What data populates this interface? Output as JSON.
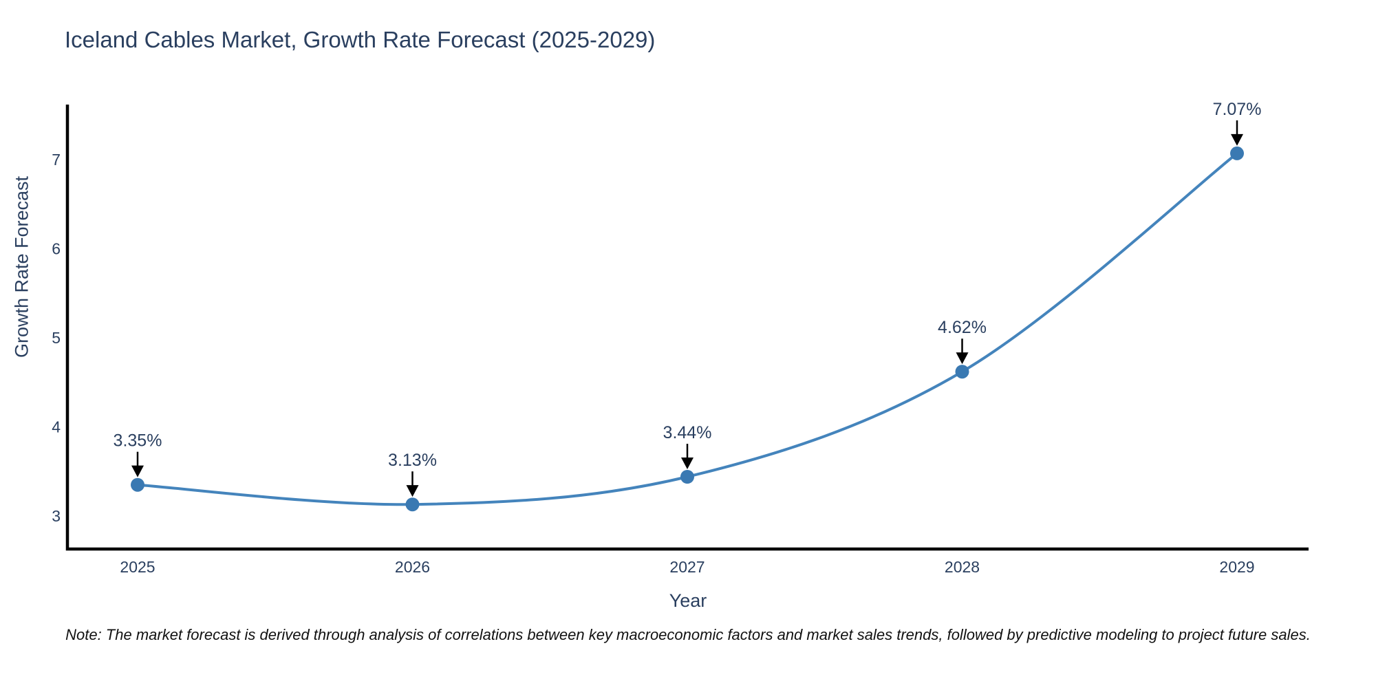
{
  "note": "Note: The market forecast is derived through analysis of correlations between key macroeconomic factors and market sales trends, followed by predictive modeling to project future sales.",
  "chart_data": {
    "type": "line",
    "title": "Iceland Cables Market, Growth Rate Forecast (2025-2029)",
    "x": [
      "2025",
      "2026",
      "2027",
      "2028",
      "2029"
    ],
    "values": [
      3.35,
      3.13,
      3.44,
      4.62,
      7.07
    ],
    "point_labels": [
      "3.35%",
      "3.13%",
      "3.44%",
      "4.62%",
      "7.07%"
    ],
    "xlabel": "Year",
    "ylabel": "Growth Rate Forecast",
    "yticks": [
      3,
      4,
      5,
      6,
      7
    ],
    "ylim": [
      2.63,
      7.62
    ],
    "grid": false,
    "legend": false,
    "line_color": "#4484bc",
    "marker_color": "#3a79b2",
    "annotation_arrow_color": "#000000",
    "text_color": "#2a3f5f",
    "axis_color": "#000000",
    "background_color": "#ffffff"
  }
}
